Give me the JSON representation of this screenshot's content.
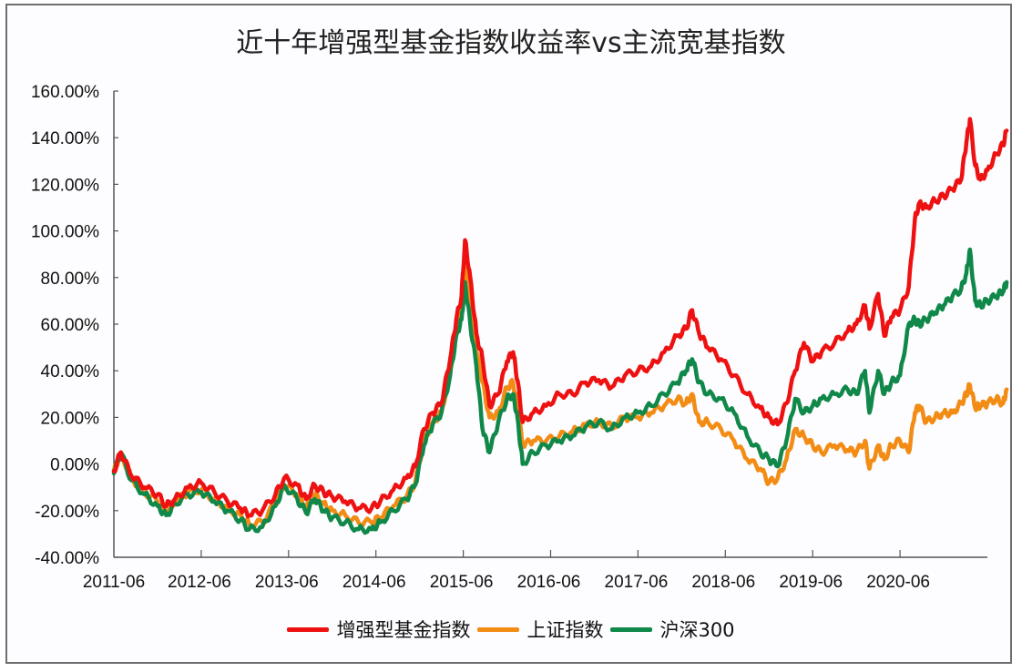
{
  "title": "近十年增强型基金指数收益率vs主流宽基指数",
  "legend": [
    {
      "label": "增强型基金指数",
      "color": "#ee1111"
    },
    {
      "label": "上证指数",
      "color": "#f28c14"
    },
    {
      "label": "沪深300",
      "color": "#10884a"
    }
  ],
  "chart_data": {
    "type": "line",
    "title": "近十年增强型基金指数收益率vs主流宽基指数",
    "xlabel": "",
    "ylabel": "",
    "ylim": [
      -40,
      160
    ],
    "xlim": [
      2011.5,
      2021.5
    ],
    "yticks": [
      "160.00%",
      "140.00%",
      "120.00%",
      "100.00%",
      "80.00%",
      "60.00%",
      "40.00%",
      "20.00%",
      "0.00%",
      "-20.00%",
      "-40.00%"
    ],
    "ytick_values": [
      160,
      140,
      120,
      100,
      80,
      60,
      40,
      20,
      0,
      -20,
      -40
    ],
    "xticks": [
      "2011-06",
      "2012-06",
      "2013-06",
      "2014-06",
      "2015-06",
      "2016-06",
      "2017-06",
      "2018-06",
      "2019-06",
      "2020-06"
    ],
    "xtick_values": [
      2011.5,
      2012.5,
      2013.5,
      2014.5,
      2015.5,
      2016.5,
      2017.5,
      2018.5,
      2019.5,
      2020.5
    ],
    "grid": false,
    "legend_position": "bottom",
    "series": [
      {
        "name": "增强型基金指数",
        "color": "#ee1111",
        "x": [
          2011.5,
          2011.58,
          2011.7,
          2011.85,
          2012.0,
          2012.1,
          2012.2,
          2012.35,
          2012.5,
          2012.65,
          2012.8,
          2012.95,
          2013.05,
          2013.2,
          2013.35,
          2013.45,
          2013.6,
          2013.7,
          2013.8,
          2013.9,
          2014.0,
          2014.15,
          2014.3,
          2014.45,
          2014.55,
          2014.7,
          2014.85,
          2014.95,
          2015.05,
          2015.15,
          2015.25,
          2015.35,
          2015.42,
          2015.48,
          2015.52,
          2015.58,
          2015.65,
          2015.72,
          2015.8,
          2015.9,
          2016.0,
          2016.07,
          2016.12,
          2016.18,
          2016.3,
          2016.45,
          2016.6,
          2016.75,
          2016.9,
          2017.05,
          2017.2,
          2017.35,
          2017.5,
          2017.65,
          2017.8,
          2017.95,
          2018.05,
          2018.12,
          2018.2,
          2018.3,
          2018.45,
          2018.6,
          2018.75,
          2018.9,
          2019.0,
          2019.1,
          2019.2,
          2019.3,
          2019.4,
          2019.5,
          2019.6,
          2019.75,
          2019.9,
          2020.0,
          2020.1,
          2020.15,
          2020.25,
          2020.32,
          2020.4,
          2020.5,
          2020.6,
          2020.67,
          2020.72,
          2020.8,
          2020.9,
          2021.0,
          2021.1,
          2021.2,
          2021.26,
          2021.3,
          2021.36,
          2021.42,
          2021.5,
          2021.6,
          2021.68,
          2021.72
        ],
        "values": [
          -3,
          5,
          -5,
          -10,
          -13,
          -18,
          -15,
          -10,
          -8,
          -12,
          -16,
          -19,
          -22,
          -20,
          -13,
          -6,
          -9,
          -15,
          -9,
          -12,
          -14,
          -16,
          -19,
          -19,
          -16,
          -11,
          -6,
          -1,
          15,
          22,
          26,
          45,
          62,
          72,
          96,
          80,
          56,
          45,
          25,
          30,
          44,
          48,
          36,
          18,
          22,
          25,
          30,
          30,
          35,
          36,
          33,
          38,
          40,
          42,
          48,
          55,
          58,
          66,
          56,
          50,
          45,
          38,
          30,
          24,
          20,
          17,
          26,
          40,
          52,
          44,
          48,
          52,
          57,
          60,
          68,
          58,
          73,
          55,
          63,
          66,
          76,
          105,
          112,
          110,
          113,
          115,
          118,
          122,
          138,
          148,
          128,
          122,
          126,
          133,
          137,
          143
        ]
      },
      {
        "name": "上证指数",
        "color": "#f28c14",
        "x": [
          2011.5,
          2011.58,
          2011.7,
          2011.85,
          2012.0,
          2012.1,
          2012.2,
          2012.35,
          2012.5,
          2012.65,
          2012.8,
          2012.95,
          2013.05,
          2013.2,
          2013.35,
          2013.45,
          2013.6,
          2013.7,
          2013.8,
          2013.9,
          2014.0,
          2014.15,
          2014.3,
          2014.45,
          2014.55,
          2014.7,
          2014.85,
          2014.95,
          2015.05,
          2015.15,
          2015.25,
          2015.35,
          2015.42,
          2015.48,
          2015.52,
          2015.58,
          2015.65,
          2015.72,
          2015.8,
          2015.9,
          2016.0,
          2016.07,
          2016.12,
          2016.18,
          2016.3,
          2016.45,
          2016.6,
          2016.75,
          2016.9,
          2017.05,
          2017.2,
          2017.35,
          2017.5,
          2017.65,
          2017.8,
          2017.95,
          2018.05,
          2018.12,
          2018.2,
          2018.3,
          2018.45,
          2018.6,
          2018.75,
          2018.9,
          2019.0,
          2019.1,
          2019.2,
          2019.3,
          2019.4,
          2019.5,
          2019.6,
          2019.75,
          2019.9,
          2020.0,
          2020.1,
          2020.15,
          2020.25,
          2020.32,
          2020.4,
          2020.5,
          2020.6,
          2020.67,
          2020.72,
          2020.8,
          2020.9,
          2021.0,
          2021.1,
          2021.2,
          2021.26,
          2021.3,
          2021.36,
          2021.42,
          2021.5,
          2021.6,
          2021.68,
          2021.72
        ],
        "values": [
          -3,
          5,
          -6,
          -12,
          -16,
          -21,
          -16,
          -12,
          -11,
          -15,
          -19,
          -22,
          -26,
          -25,
          -17,
          -9,
          -13,
          -19,
          -13,
          -17,
          -20,
          -22,
          -25,
          -25,
          -23,
          -18,
          -14,
          -8,
          10,
          18,
          22,
          40,
          56,
          66,
          86,
          70,
          48,
          35,
          20,
          22,
          33,
          35,
          25,
          8,
          10,
          10,
          12,
          14,
          17,
          18,
          16,
          20,
          20,
          22,
          25,
          28,
          26,
          30,
          18,
          18,
          15,
          10,
          2,
          -2,
          -8,
          -6,
          2,
          15,
          12,
          8,
          5,
          8,
          6,
          5,
          10,
          -2,
          8,
          2,
          8,
          10,
          5,
          22,
          25,
          18,
          20,
          22,
          22,
          26,
          30,
          34,
          24,
          25,
          26,
          28,
          26,
          32
        ]
      },
      {
        "name": "沪深300",
        "color": "#10884a",
        "x": [
          2011.5,
          2011.58,
          2011.7,
          2011.85,
          2012.0,
          2012.1,
          2012.2,
          2012.35,
          2012.5,
          2012.65,
          2012.8,
          2012.95,
          2013.05,
          2013.2,
          2013.35,
          2013.45,
          2013.6,
          2013.7,
          2013.8,
          2013.9,
          2014.0,
          2014.15,
          2014.3,
          2014.45,
          2014.55,
          2014.7,
          2014.85,
          2014.95,
          2015.05,
          2015.15,
          2015.25,
          2015.35,
          2015.42,
          2015.48,
          2015.52,
          2015.58,
          2015.65,
          2015.72,
          2015.8,
          2015.9,
          2016.0,
          2016.07,
          2016.12,
          2016.18,
          2016.3,
          2016.45,
          2016.6,
          2016.75,
          2016.9,
          2017.05,
          2017.2,
          2017.35,
          2017.5,
          2017.65,
          2017.8,
          2017.95,
          2018.05,
          2018.12,
          2018.2,
          2018.3,
          2018.45,
          2018.6,
          2018.75,
          2018.9,
          2019.0,
          2019.1,
          2019.2,
          2019.3,
          2019.4,
          2019.5,
          2019.6,
          2019.75,
          2019.9,
          2020.0,
          2020.1,
          2020.15,
          2020.25,
          2020.32,
          2020.4,
          2020.5,
          2020.6,
          2020.67,
          2020.72,
          2020.8,
          2020.9,
          2021.0,
          2021.1,
          2021.2,
          2021.26,
          2021.3,
          2021.36,
          2021.42,
          2021.5,
          2021.6,
          2021.68,
          2021.72
        ],
        "values": [
          -4,
          5,
          -7,
          -13,
          -18,
          -22,
          -17,
          -13,
          -12,
          -16,
          -20,
          -24,
          -28,
          -27,
          -18,
          -9,
          -15,
          -21,
          -15,
          -20,
          -23,
          -25,
          -28,
          -28,
          -25,
          -20,
          -15,
          -9,
          8,
          17,
          22,
          38,
          55,
          62,
          78,
          60,
          42,
          15,
          5,
          18,
          28,
          30,
          20,
          0,
          5,
          8,
          10,
          12,
          16,
          18,
          15,
          20,
          22,
          25,
          30,
          35,
          40,
          45,
          35,
          30,
          28,
          22,
          12,
          5,
          2,
          -1,
          10,
          28,
          22,
          25,
          28,
          30,
          32,
          30,
          40,
          22,
          40,
          30,
          35,
          38,
          60,
          62,
          60,
          62,
          65,
          68,
          72,
          75,
          82,
          92,
          70,
          68,
          70,
          72,
          74,
          78
        ]
      }
    ]
  }
}
